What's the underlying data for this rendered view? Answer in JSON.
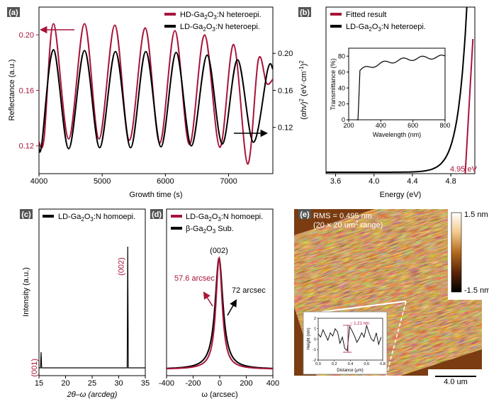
{
  "colors": {
    "red": "#A8143A",
    "black": "#000000"
  },
  "chart_data": [
    {
      "panel": "(a)",
      "type": "line",
      "xlabel": "Growth time (s)",
      "ylabel": "Reflectance (a.u.)",
      "xlim": [
        4000,
        7700
      ],
      "xticks": [
        4000,
        5000,
        6000,
        7000
      ],
      "left_axis": {
        "ylim": [
          0.1,
          0.22
        ],
        "ticks": [
          0.12,
          0.16,
          0.2
        ],
        "tick_labels": [
          "0.12",
          "0.16",
          "0.20"
        ],
        "color": "#A8143A"
      },
      "right_axis": {
        "ylim": [
          0.07,
          0.25
        ],
        "ticks": [
          0.12,
          0.16,
          0.2
        ],
        "tick_labels": [
          "0.12",
          "0.16",
          "0.20"
        ],
        "color": "#000000"
      },
      "legend": "top-right",
      "series": [
        {
          "name": "HD-Ga2O3:N heteroepi.",
          "label_main": "HD-Ga",
          "label_sub1": "2",
          "label_mid": "O",
          "label_sub2": "3",
          "label_tail": ":N heteroepi.",
          "axis": "left",
          "color": "#A8143A",
          "x": [
            3990,
            4080,
            4230,
            4470,
            4720,
            4950,
            5200,
            5430,
            5680,
            5910,
            6150,
            6380,
            6620,
            6860,
            7080,
            7300,
            7470,
            7600,
            7700
          ],
          "y": [
            0.124,
            0.125,
            0.208,
            0.125,
            0.208,
            0.125,
            0.207,
            0.124,
            0.205,
            0.122,
            0.203,
            0.121,
            0.2,
            0.119,
            0.193,
            0.107,
            0.182,
            0.165,
            0.168
          ]
        },
        {
          "name": "LD-Ga2O3:N heteroepi.",
          "label_main": "LD-Ga",
          "label_sub1": "2",
          "label_mid": "O",
          "label_sub2": "3",
          "label_tail": ":N heteroepi.",
          "axis": "right",
          "color": "#000000",
          "x": [
            3990,
            4040,
            4230,
            4470,
            4720,
            4960,
            5210,
            5450,
            5690,
            5930,
            6170,
            6410,
            6660,
            6900,
            7140,
            7390,
            7620,
            7700
          ],
          "y": [
            0.104,
            0.1,
            0.204,
            0.097,
            0.203,
            0.098,
            0.202,
            0.098,
            0.202,
            0.099,
            0.201,
            0.1,
            0.198,
            0.102,
            0.193,
            0.104,
            0.183,
            0.183
          ]
        }
      ]
    },
    {
      "panel": "(b)",
      "type": "line",
      "xlabel": "Energy (eV)",
      "ylabel_parts": [
        "(",
        "αhν",
        ")",
        "2",
        " (eV·cm",
        "-1",
        ")",
        "2"
      ],
      "xlim": [
        3.5,
        5.05
      ],
      "xticks": [
        3.6,
        4.0,
        4.4,
        4.8
      ],
      "legend": "top-left",
      "series": [
        {
          "name": "Fitted result",
          "color": "#A8143A"
        },
        {
          "name": "LD-Ga2O3:N heteroepi.",
          "label_main": "LD-Ga",
          "label_sub1": "2",
          "label_mid": "O",
          "label_sub2": "3",
          "label_tail": ":N heteroepi.",
          "color": "#000000"
        }
      ],
      "annotation": "4.95 eV",
      "bandgap_ev": 4.95,
      "inset": {
        "xlabel": "Wavelength (nm)",
        "ylabel": "Transmittance (%)",
        "xlim": [
          200,
          800
        ],
        "ylim": [
          0,
          90
        ],
        "xticks": [
          200,
          400,
          600,
          800
        ],
        "yticks": [
          0,
          20,
          40,
          60,
          80
        ],
        "x": [
          250,
          258,
          262,
          270,
          280,
          300,
          340,
          400,
          500,
          600,
          700,
          760,
          800
        ],
        "y": [
          0,
          5,
          40,
          62,
          66,
          70,
          72,
          74,
          77,
          79,
          80,
          81,
          79
        ]
      }
    },
    {
      "panel": "(c)",
      "type": "line",
      "xlabel": "2θ–ω (arcdeg)",
      "ylabel": "Intensity (a.u.)",
      "xlim": [
        15,
        35
      ],
      "xticks": [
        15,
        20,
        25,
        30,
        35
      ],
      "legend": "top-left",
      "series": [
        {
          "name": "LD-Ga2O3:N homoepi.",
          "label_main": "LD-Ga",
          "label_sub1": "2",
          "label_mid": "O",
          "label_sub2": "3",
          "label_tail": ":N homoepi.",
          "color": "#000000"
        }
      ],
      "peaks": [
        {
          "label": "(001)",
          "x": 15.4,
          "relative_height": 0.13
        },
        {
          "label": "(002)",
          "x": 31.7,
          "relative_height": 1.0
        }
      ]
    },
    {
      "panel": "(d)",
      "type": "line",
      "xlabel": "ω (arcsec)",
      "xlim": [
        -400,
        400
      ],
      "xticks": [
        -400,
        -200,
        0,
        200,
        400
      ],
      "legend": "top-left",
      "series": [
        {
          "name": "LD-Ga2O3:N homoepi.",
          "label_main": "LD-Ga",
          "label_sub1": "2",
          "label_mid": "O",
          "label_sub2": "3",
          "label_tail": ":N homoepi.",
          "color": "#A8143A",
          "fwhm_arcsec": 57.6,
          "center": -5
        },
        {
          "name": "β-Ga2O3 Sub.",
          "label_main": "β-Ga",
          "label_sub1": "2",
          "label_mid": "O",
          "label_sub2": "3",
          "label_tail": " Sub.",
          "color": "#000000",
          "fwhm_arcsec": 72,
          "center": -5
        }
      ],
      "peak_label": "(002)",
      "fwhm_labels": [
        "57.6 arcsec",
        "72 arcsec"
      ]
    },
    {
      "panel": "(e)",
      "type": "heatmap",
      "rms_text": "RMS = 0.495 nm",
      "range_text_parts": [
        "(20 × 20 um",
        "2",
        " range)"
      ],
      "scale_max": "1.5 nm",
      "scale_min": "-1.5 nm",
      "scale_bar": "4.0 um",
      "inset": {
        "xlabel": "Distance (μm)",
        "ylabel": "Height (nm)",
        "annotation": "~ 1.21 nm",
        "xlim": [
          0,
          0.8
        ],
        "ylim": [
          -2,
          2
        ],
        "xticks": [
          0.0,
          0.2,
          0.4,
          0.6,
          0.8
        ],
        "xtick_labels": [
          "0.0",
          "0.2",
          "0.4",
          "0.6",
          "0.8"
        ],
        "yticks": [
          -2,
          -1,
          0,
          1,
          2
        ],
        "x": [
          0,
          0.03,
          0.06,
          0.09,
          0.12,
          0.15,
          0.18,
          0.21,
          0.24,
          0.27,
          0.3,
          0.33,
          0.36,
          0.39,
          0.42,
          0.45,
          0.48,
          0.51,
          0.54,
          0.57,
          0.6,
          0.63,
          0.66,
          0.69,
          0.72,
          0.75,
          0.78
        ],
        "y": [
          0.5,
          0.2,
          0.9,
          0.4,
          -0.1,
          0.6,
          0.3,
          1.0,
          0.7,
          -0.4,
          0.2,
          -0.9,
          -1.1,
          1.2,
          0.8,
          0.3,
          -0.3,
          0.1,
          0.6,
          0.2,
          1.3,
          0.6,
          0.0,
          -0.2,
          0.6,
          -0.5,
          0.2
        ]
      }
    }
  ]
}
